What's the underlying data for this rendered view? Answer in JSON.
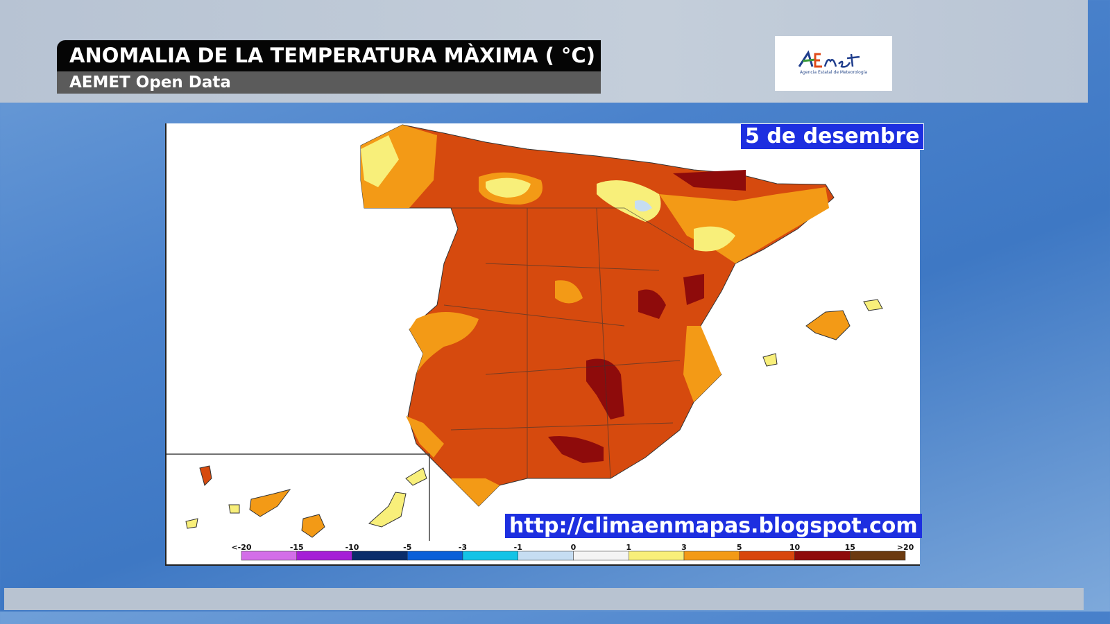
{
  "header": {
    "title": "ANOMALIA DE LA TEMPERATURA MÀXIMA ( °C)",
    "subtitle": "AEMET Open Data"
  },
  "logo": {
    "text": "AEmet",
    "subtitle": "Agencia Estatal de Meteorología"
  },
  "map": {
    "date_label": "5 de desembre",
    "source_url": "http://climaenmapas.blogspot.com",
    "legend": {
      "labels": [
        "<-20",
        "-15",
        "-10",
        "-5",
        "-3",
        "-1",
        "0",
        "1",
        "3",
        "5",
        "10",
        "15",
        ">20"
      ],
      "colors": [
        "#d36ee8",
        "#a51fd6",
        "#0b2d6b",
        "#0a5fd8",
        "#14c3e6",
        "#c6ddf2",
        "#f4f4f4",
        "#f8ef7a",
        "#f39a16",
        "#d8460c",
        "#8e0b0b",
        "#6b3a10"
      ]
    }
  }
}
